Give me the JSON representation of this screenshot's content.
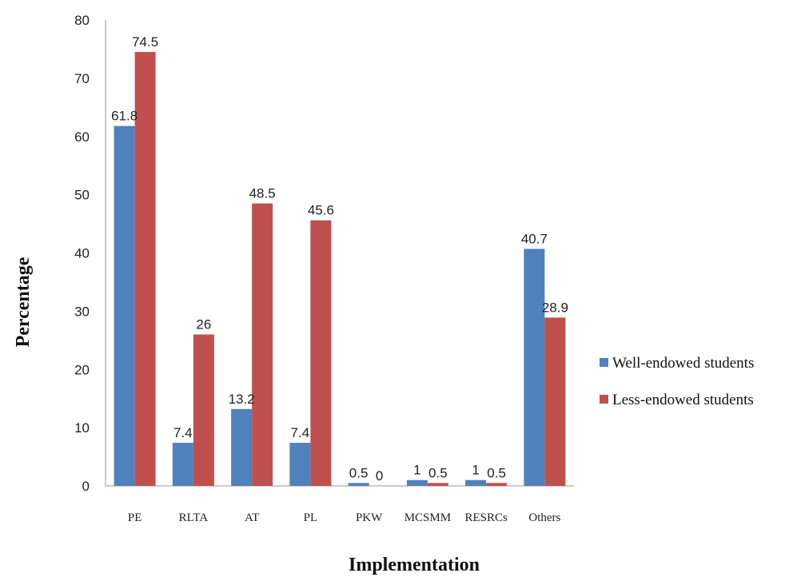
{
  "chart_data": {
    "type": "bar",
    "categories": [
      "PE",
      "RLTA",
      "AT",
      "PL",
      "PKW",
      "MCSMM",
      "RESRCs",
      "Others"
    ],
    "series": [
      {
        "name": "Well-endowed students",
        "values": [
          61.8,
          7.4,
          13.2,
          7.4,
          0.5,
          1,
          1,
          40.7
        ],
        "labels": [
          "61.8",
          "7.4",
          "13.2",
          "7.4",
          "0.5",
          "1",
          "1",
          "40.7"
        ],
        "color": "#4F81BD"
      },
      {
        "name": "Less-endowed students",
        "values": [
          74.5,
          26,
          48.5,
          45.6,
          0,
          0.5,
          0.5,
          28.9
        ],
        "labels": [
          "74.5",
          "26",
          "48.5",
          "45.6",
          "0",
          "0.5",
          "0.5",
          "28.9"
        ],
        "color": "#C0504D"
      }
    ],
    "title": "",
    "xlabel": "Implementation",
    "ylabel": "Percentage",
    "ylim": [
      0,
      80
    ],
    "yticks": [
      0,
      10,
      20,
      30,
      40,
      50,
      60,
      70,
      80
    ],
    "grid": false,
    "legend_position": "right"
  }
}
